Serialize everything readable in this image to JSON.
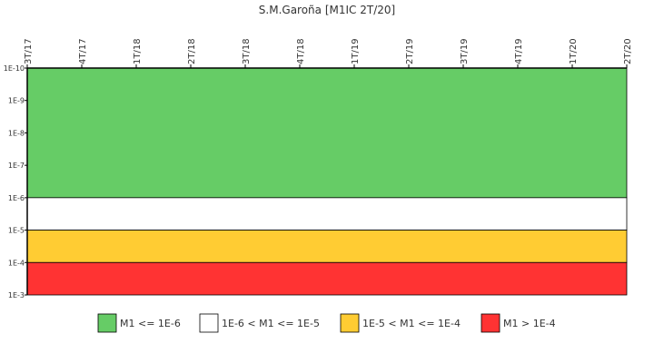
{
  "chart_data": {
    "type": "band",
    "title": "S.M.Garoña [M1IC 2T/20]",
    "categories": [
      "3T/17",
      "4T/17",
      "1T/18",
      "2T/18",
      "3T/18",
      "4T/18",
      "1T/19",
      "2T/19",
      "3T/19",
      "4T/19",
      "1T/20",
      "2T/20"
    ],
    "ylim": [
      1e-10,
      0.001
    ],
    "yticks": [
      {
        "value": 1e-10,
        "label": "1E-10"
      },
      {
        "value": 1e-09,
        "label": "1E-9"
      },
      {
        "value": 1e-08,
        "label": "1E-8"
      },
      {
        "value": 1e-07,
        "label": "1E-7"
      },
      {
        "value": 1e-06,
        "label": "1E-6"
      },
      {
        "value": 1e-05,
        "label": "1E-5"
      },
      {
        "value": 0.0001,
        "label": "1E-4"
      },
      {
        "value": 0.001,
        "label": "1E-3"
      }
    ],
    "log_scale": true,
    "y_reversed": true,
    "bands": [
      {
        "name": "M1 <= 1E-6",
        "color": "#66cc66",
        "range": [
          1e-10,
          1e-06
        ]
      },
      {
        "name": "1E-6 < M1 <= 1E-5",
        "color": "#ffffff",
        "range": [
          1e-06,
          1e-05
        ]
      },
      {
        "name": "1E-5 < M1 <= 1E-4",
        "color": "#ffcc33",
        "range": [
          1e-05,
          0.0001
        ]
      },
      {
        "name": "M1 > 1E-4",
        "color": "#ff3333",
        "range": [
          0.0001,
          0.001
        ]
      }
    ]
  }
}
